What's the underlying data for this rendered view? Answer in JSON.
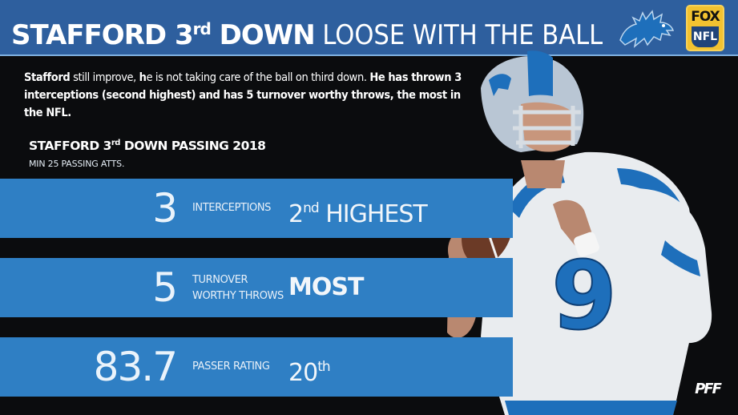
{
  "header": {
    "title_strong": "STAFFORD 3",
    "title_sup": "rd",
    "title_strong_2": " DOWN",
    "title_rest": " LOOSE WITH THE BALL"
  },
  "logos": {
    "team": "lions-logo",
    "network_top": "FOX",
    "network_bottom": "NFL",
    "corner": "PFF"
  },
  "intro": {
    "part1": "Stafford",
    "part2": " still improve, ",
    "part3": "h",
    "part4": "e is not taking care of the ball on third down. ",
    "part5": "He has thrown 3 interceptions (second highest) and has 5 turnover worthy throws, the most in the NFL."
  },
  "subheading": {
    "title_a": "STAFFORD 3",
    "title_sup": "rd",
    "title_b": " DOWN PASSING 2018",
    "note": "MIN 25 PASSING ATTS."
  },
  "stats": [
    {
      "value": "3",
      "label": "INTERCEPTIONS",
      "rank": "2",
      "rank_sup": "nd",
      "rank_rest": " HIGHEST"
    },
    {
      "value": "5",
      "label": "TURNOVER WORTHY THROWS",
      "rank": "MOST",
      "rank_sup": "",
      "rank_rest": ""
    },
    {
      "value": "83.7",
      "label": "PASSER RATING",
      "rank": "20",
      "rank_sup": "th",
      "rank_rest": ""
    }
  ],
  "colors": {
    "header_bg": "#2e5f9e",
    "bar_bg": "#2f7fc4",
    "background": "#0b0c0e",
    "lions_blue": "#1e6fbb"
  }
}
